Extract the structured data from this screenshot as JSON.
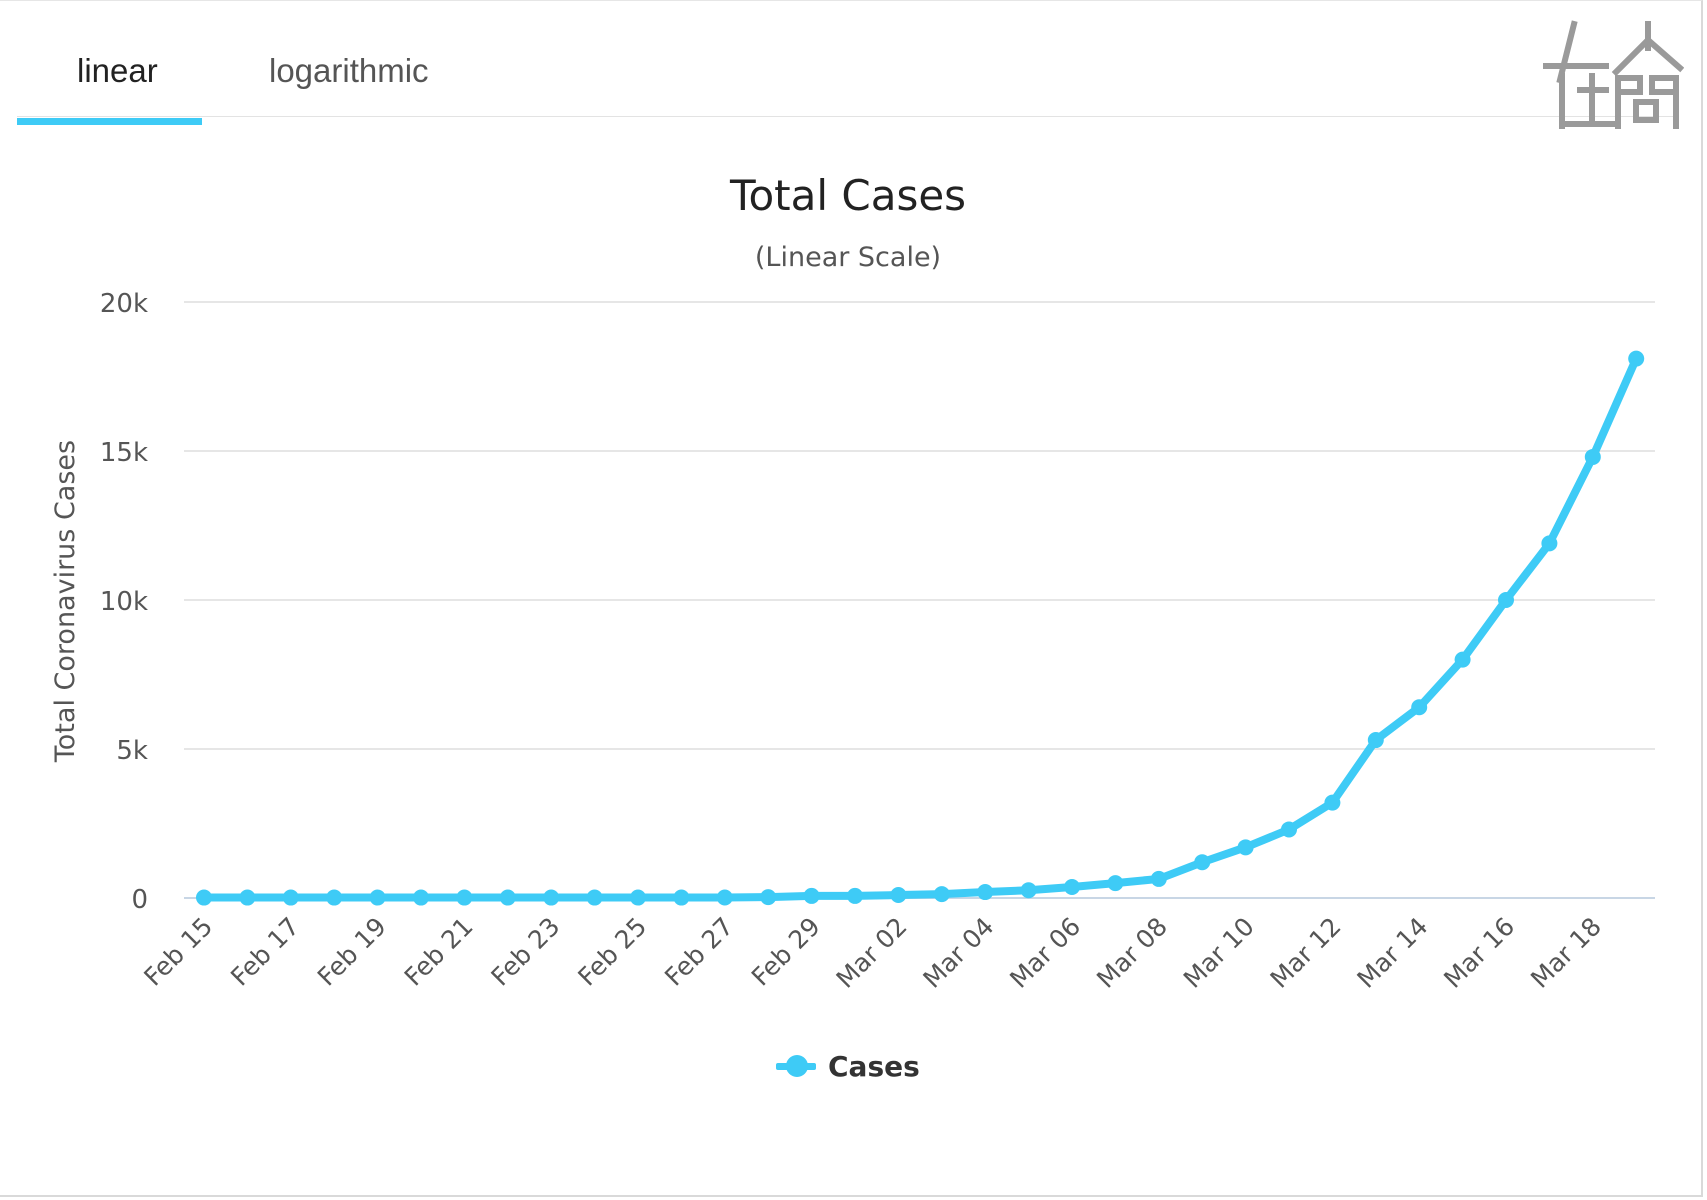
{
  "tabs": [
    {
      "label": "linear",
      "active": true
    },
    {
      "label": "logarithmic",
      "active": false
    }
  ],
  "colors": {
    "accent": "#3ecbf6",
    "grid": "#e6e6e6",
    "text": "#333333",
    "axis_text": "#555555"
  },
  "logo": {
    "name": "watermark-logo",
    "text": "在人間"
  },
  "chart_data": {
    "type": "line",
    "title": "Total Cases",
    "subtitle": "(Linear Scale)",
    "xlabel": "",
    "ylabel": "Total Coronavirus Cases",
    "ylim": [
      0,
      20000
    ],
    "yticks": [
      0,
      5000,
      10000,
      15000,
      20000
    ],
    "ytick_labels": [
      "0",
      "5k",
      "10k",
      "15k",
      "20k"
    ],
    "x": [
      "Feb 15",
      "Feb 16",
      "Feb 17",
      "Feb 18",
      "Feb 19",
      "Feb 20",
      "Feb 21",
      "Feb 22",
      "Feb 23",
      "Feb 24",
      "Feb 25",
      "Feb 26",
      "Feb 27",
      "Feb 28",
      "Feb 29",
      "Mar 01",
      "Mar 02",
      "Mar 03",
      "Mar 04",
      "Mar 05",
      "Mar 06",
      "Mar 07",
      "Mar 08",
      "Mar 09",
      "Mar 10",
      "Mar 11",
      "Mar 12",
      "Mar 13",
      "Mar 14",
      "Mar 15",
      "Mar 16",
      "Mar 17",
      "Mar 18",
      "Mar 19"
    ],
    "xtick_labels": [
      "Feb 15",
      "Feb 17",
      "Feb 19",
      "Feb 21",
      "Feb 23",
      "Feb 25",
      "Feb 27",
      "Feb 29",
      "Mar 02",
      "Mar 04",
      "Mar 06",
      "Mar 08",
      "Mar 10",
      "Mar 12",
      "Mar 14",
      "Mar 16",
      "Mar 18"
    ],
    "grid": true,
    "legend_position": "bottom-center",
    "series": [
      {
        "name": "Cases",
        "color": "#3ecbf6",
        "values": [
          15,
          15,
          15,
          15,
          15,
          15,
          15,
          15,
          15,
          15,
          15,
          15,
          16,
          30,
          70,
          70,
          100,
          130,
          200,
          260,
          370,
          500,
          640,
          1200,
          1700,
          2300,
          3200,
          5300,
          6400,
          8000,
          10000,
          11900,
          14800,
          18100
        ]
      }
    ]
  }
}
